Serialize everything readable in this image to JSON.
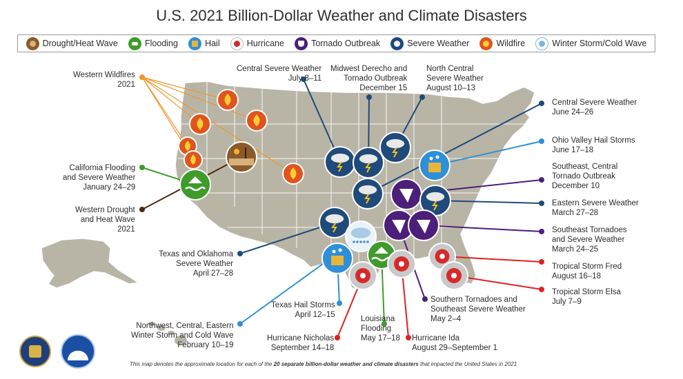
{
  "title": "U.S. 2021 Billion-Dollar Weather and Climate Disasters",
  "legend": [
    {
      "key": "drought",
      "label": "Drought/Heat Wave",
      "color": "#8b5a2b"
    },
    {
      "key": "flood",
      "label": "Flooding",
      "color": "#3f9b2c"
    },
    {
      "key": "hail",
      "label": "Hail",
      "color": "#2f8fd8"
    },
    {
      "key": "hurricane",
      "label": "Hurricane",
      "color": "#d62a2a"
    },
    {
      "key": "tornado",
      "label": "Tornado Outbreak",
      "color": "#4b1f7a"
    },
    {
      "key": "severe",
      "label": "Severe Weather",
      "color": "#1f4a7a"
    },
    {
      "key": "wildfire",
      "label": "Wildfire",
      "color": "#e0541f"
    },
    {
      "key": "winter",
      "label": "Winter Storm/Cold Wave",
      "color": "#7fb3d9"
    }
  ],
  "events": {
    "western_wildfires": {
      "title": "Western Wildfires",
      "date": "2021",
      "type": "wildfire"
    },
    "ca_flooding": {
      "title": "California Flooding and Severe Weather",
      "date": "January 24–29",
      "type": "flood"
    },
    "western_drought": {
      "title": "Western Drought and Heat Wave",
      "date": "2021",
      "type": "drought"
    },
    "tx_ok_severe": {
      "title": "Texas and Oklahoma Severe Weather",
      "date": "April 27–28",
      "type": "severe"
    },
    "winter_storm": {
      "title": "Northwest, Central, Eastern Winter Storm and Cold Wave",
      "date": "February 10–19",
      "type": "winter"
    },
    "tx_hail": {
      "title": "Texas Hail Storms",
      "date": "April 12–15",
      "type": "hail"
    },
    "hurricane_nicholas": {
      "title": "Hurricane Nicholas",
      "date": "September 14–18",
      "type": "hurricane"
    },
    "la_flooding": {
      "title": "Louisiana Flooding",
      "date": "May 17–18",
      "type": "flood"
    },
    "hurricane_ida": {
      "title": "Hurricane Ida",
      "date": "August 29–September 1",
      "type": "hurricane"
    },
    "southern_tornadoes": {
      "title": "Southern Tornadoes and Southeast Severe Weather",
      "date": "May 2–4",
      "type": "tornado"
    },
    "central_severe_jul": {
      "title": "Central Severe Weather",
      "date": "July 8–11",
      "type": "severe"
    },
    "midwest_derecho": {
      "title": "Midwest Derecho and Tornado Outbreak",
      "date": "December 15",
      "type": "severe"
    },
    "north_central_severe": {
      "title": "North Central Severe Weather",
      "date": "August 10–13",
      "type": "severe"
    },
    "central_severe_jun": {
      "title": "Central Severe Weather",
      "date": "June 24–26",
      "type": "severe"
    },
    "ohio_valley_hail": {
      "title": "Ohio Valley Hail Storms",
      "date": "June 17–18",
      "type": "hail"
    },
    "se_central_tornado": {
      "title": "Southeast, Central Tornado Outbreak",
      "date": "December 10",
      "type": "tornado"
    },
    "eastern_severe": {
      "title": "Eastern Severe Weather",
      "date": "March 27–28",
      "type": "severe"
    },
    "se_tornadoes": {
      "title": "Southeast Tornadoes and Severe Weather",
      "date": "March 24–25",
      "type": "tornado"
    },
    "ts_fred": {
      "title": "Tropical Storm Fred",
      "date": "August 16–18",
      "type": "hurricane"
    },
    "ts_elsa": {
      "title": "Tropical Storm Elsa",
      "date": "July 7–9",
      "type": "hurricane"
    }
  },
  "label_lines": {
    "western_wildfires": [
      "Western Wildfires",
      "2021"
    ],
    "ca_flooding": [
      "California Flooding",
      "and Severe Weather",
      "January 24–29"
    ],
    "western_drought": [
      "Western Drought",
      "and Heat Wave",
      "2021"
    ],
    "tx_ok_severe": [
      "Texas and Oklahoma",
      "Severe Weather",
      "April 27–28"
    ],
    "winter_storm": [
      "Northwest, Central, Eastern",
      "Winter Storm and Cold Wave",
      "February 10–19"
    ],
    "tx_hail": [
      "Texas Hail Storms",
      "April 12–15"
    ],
    "hurricane_nicholas": [
      "Hurricane Nicholas",
      "September 14–18"
    ],
    "la_flooding": [
      "Louisiana",
      "Flooding",
      "May 17–18"
    ],
    "hurricane_ida": [
      "Hurricane Ida",
      "August 29–September 1"
    ],
    "southern_tornadoes": [
      "Southern Tornadoes and",
      "Southeast Severe Weather",
      "May 2–4"
    ],
    "central_severe_jul": [
      "Central Severe Weather",
      "July 8–11"
    ],
    "midwest_derecho": [
      "Midwest Derecho and",
      "Tornado Outbreak",
      "December 15"
    ],
    "north_central_severe": [
      "North Central",
      "Severe Weather",
      "August 10–13"
    ],
    "central_severe_jun": [
      "Central Severe Weather",
      "June 24–26"
    ],
    "ohio_valley_hail": [
      "Ohio Valley Hail Storms",
      "June 17–18"
    ],
    "se_central_tornado": [
      "Southeast, Central",
      "Tornado Outbreak",
      "December 10"
    ],
    "eastern_severe": [
      "Eastern Severe Weather",
      "March 27–28"
    ],
    "se_tornadoes": [
      "Southeast Tornadoes",
      "and Severe Weather",
      "March 24–25"
    ],
    "ts_fred": [
      "Tropical Storm Fred",
      "August 16–18"
    ],
    "ts_elsa": [
      "Tropical Storm Elsa",
      "July 7–9"
    ]
  },
  "footer": {
    "before": "This map denotes the approximate location for each of the ",
    "bold": "20 separate billion-dollar weather and climate disasters",
    "after": " that impacted the United States in 2021"
  },
  "seals": {
    "doc": {
      "label": "DEPARTMENT OF COMMERCE"
    },
    "noaa": {
      "label": "NOAA"
    }
  },
  "colors": {
    "map_land": "#b9b5a6",
    "map_border": "#ffffff"
  }
}
